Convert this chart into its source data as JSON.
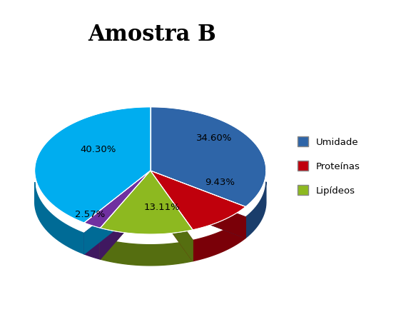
{
  "title": "Amostra B",
  "slices": [
    {
      "label": "Umidade",
      "value": 34.6,
      "color": "#2E65A8",
      "dark_color": "#1A3D6B",
      "pct_label": "34.60%"
    },
    {
      "label": "Proteínas",
      "value": 9.43,
      "color": "#C0000C",
      "dark_color": "#7A0008",
      "pct_label": "9.43%"
    },
    {
      "label": "Lipídeos",
      "value": 13.11,
      "color": "#8DB920",
      "dark_color": "#556E10",
      "pct_label": "13.11%"
    },
    {
      "label": "",
      "value": 2.57,
      "color": "#7030A0",
      "dark_color": "#401860",
      "pct_label": "2.57%"
    },
    {
      "label": "",
      "value": 40.3,
      "color": "#00ADEF",
      "dark_color": "#006B96",
      "pct_label": "40.30%"
    }
  ],
  "legend_labels": [
    "Umidade",
    "Proteínas",
    "Lipídeos"
  ],
  "legend_colors": [
    "#2E65A8",
    "#C0000C",
    "#8DB920"
  ],
  "title_fontsize": 22,
  "title_fontweight": "bold",
  "background_color": "#ffffff",
  "startangle": 90
}
